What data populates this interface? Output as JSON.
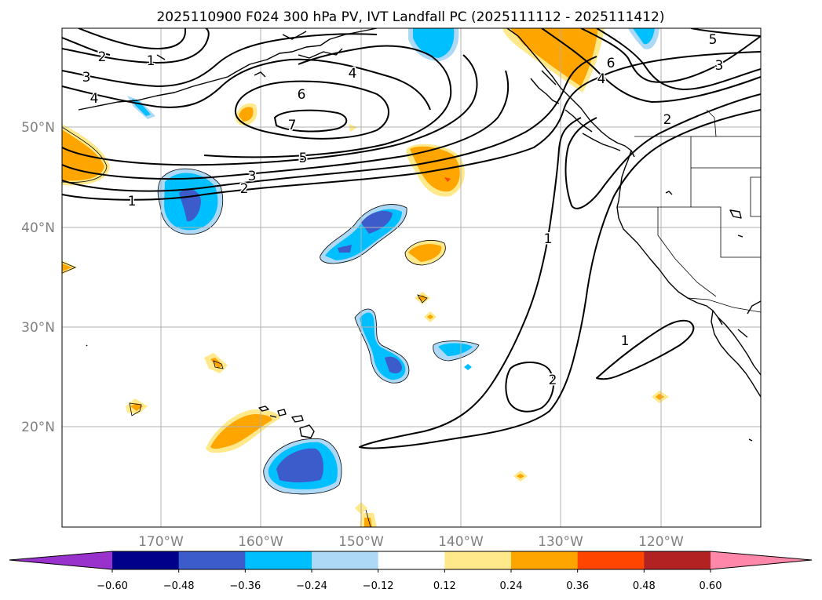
{
  "title": "2025110900 F024 300 hPa PV, IVT Landfall PC (2025111112 - 2025111412)",
  "map": {
    "lat_labels": [
      "50°N",
      "40°N",
      "30°N",
      "20°N"
    ],
    "lon_labels": [
      "170°W",
      "160°W",
      "150°W",
      "140°W",
      "130°W",
      "120°W"
    ]
  },
  "contour_labels": [
    "1",
    "2",
    "3",
    "4",
    "5",
    "6",
    "7"
  ],
  "colorbar": {
    "colors": [
      "#9932cc",
      "#00008b",
      "#3c5ccc",
      "#00bfff",
      "#add8f6",
      "#ffffff",
      "#ffe98a",
      "#ffa500",
      "#ff4500",
      "#b22222",
      "#ff88aa"
    ],
    "tick_labels": [
      "−0.60",
      "−0.48",
      "−0.36",
      "−0.24",
      "−0.12",
      "0.12",
      "0.24",
      "0.36",
      "0.48",
      "0.60"
    ]
  }
}
